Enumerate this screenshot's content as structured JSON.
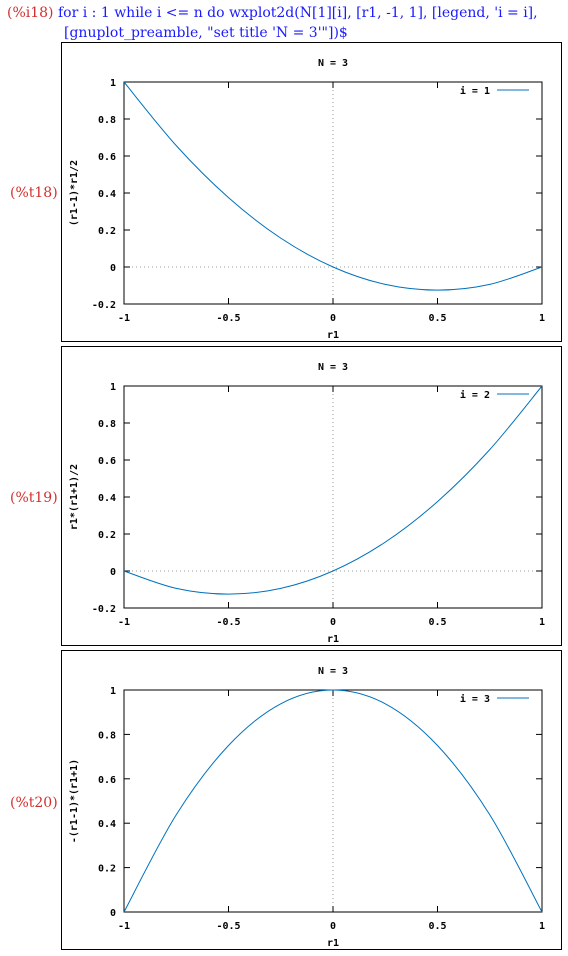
{
  "input": {
    "label": "(%i18)",
    "line1": "for i : 1 while i <= n do wxplot2d(N[1][i], [r1, -1, 1], [legend, 'i = i],",
    "line2": "[gnuplot_preamble, \"set title 'N = 3'\"])$"
  },
  "colors": {
    "line": "#0072bd",
    "input_label": "#d32f2f",
    "input_code": "#1a1aff"
  },
  "chart_data": [
    {
      "type": "line",
      "output_label": "(%t18)",
      "title": "N = 3",
      "xlabel": "r1",
      "ylabel": "(r1-1)*r1/2",
      "xlim": [
        -1,
        1
      ],
      "ylim": [
        -0.2,
        1
      ],
      "xticks": [
        -1,
        -0.5,
        0,
        0.5,
        1
      ],
      "xtick_labels": [
        "-1",
        "-0.5",
        "0",
        "0.5",
        "1"
      ],
      "yticks": [
        -0.2,
        0,
        0.2,
        0.4,
        0.6,
        0.8,
        1
      ],
      "ytick_labels": [
        "-0.2",
        "0",
        "0.2",
        "0.4",
        "0.6",
        "0.8",
        "1"
      ],
      "zero_axes": true,
      "legend_position": "top-right",
      "series": [
        {
          "name": "i = 1",
          "x": [
            -1,
            -0.75,
            -0.5,
            -0.25,
            0,
            0.25,
            0.5,
            0.75,
            1
          ],
          "y": [
            1,
            0.656,
            0.375,
            0.156,
            0,
            -0.094,
            -0.125,
            -0.094,
            0
          ]
        }
      ]
    },
    {
      "type": "line",
      "output_label": "(%t19)",
      "title": "N = 3",
      "xlabel": "r1",
      "ylabel": "r1*(r1+1)/2",
      "xlim": [
        -1,
        1
      ],
      "ylim": [
        -0.2,
        1
      ],
      "xticks": [
        -1,
        -0.5,
        0,
        0.5,
        1
      ],
      "xtick_labels": [
        "-1",
        "-0.5",
        "0",
        "0.5",
        "1"
      ],
      "yticks": [
        -0.2,
        0,
        0.2,
        0.4,
        0.6,
        0.8,
        1
      ],
      "ytick_labels": [
        "-0.2",
        "0",
        "0.2",
        "0.4",
        "0.6",
        "0.8",
        "1"
      ],
      "zero_axes": true,
      "legend_position": "top-right",
      "series": [
        {
          "name": "i = 2",
          "x": [
            -1,
            -0.75,
            -0.5,
            -0.25,
            0,
            0.25,
            0.5,
            0.75,
            1
          ],
          "y": [
            0,
            -0.094,
            -0.125,
            -0.094,
            0,
            0.156,
            0.375,
            0.656,
            1
          ]
        }
      ]
    },
    {
      "type": "line",
      "output_label": "(%t20)",
      "title": "N = 3",
      "xlabel": "r1",
      "ylabel": "-(r1-1)*(r1+1)",
      "xlim": [
        -1,
        1
      ],
      "ylim": [
        0,
        1
      ],
      "xticks": [
        -1,
        -0.5,
        0,
        0.5,
        1
      ],
      "xtick_labels": [
        "-1",
        "-0.5",
        "0",
        "0.5",
        "1"
      ],
      "yticks": [
        0,
        0.2,
        0.4,
        0.6,
        0.8,
        1
      ],
      "ytick_labels": [
        "0",
        "0.2",
        "0.4",
        "0.6",
        "0.8",
        "1"
      ],
      "zero_axes": true,
      "legend_position": "top-right",
      "series": [
        {
          "name": "i = 3",
          "x": [
            -1,
            -0.75,
            -0.5,
            -0.25,
            0,
            0.25,
            0.5,
            0.75,
            1
          ],
          "y": [
            0,
            0.438,
            0.75,
            0.938,
            1,
            0.938,
            0.75,
            0.438,
            0
          ]
        }
      ]
    }
  ]
}
